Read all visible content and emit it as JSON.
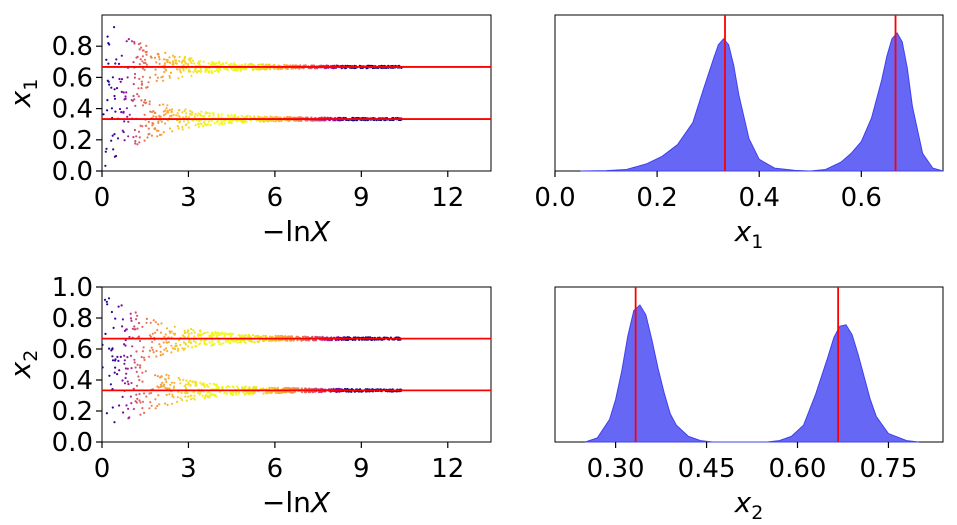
{
  "colors": {
    "truth_line": "#ff0000",
    "kde_fill": "#5a5af5",
    "kde_edge": "#4040ee",
    "colormap": [
      "#0d0887",
      "#6a00a8",
      "#b12a90",
      "#e16462",
      "#fca636",
      "#f0f921"
    ]
  },
  "chart_data": [
    {
      "id": "trace-x1",
      "type": "scatter",
      "xlabel_prefix": "−ln",
      "xlabel_var": "X",
      "ylabel_var": "x",
      "ylabel_sub": "1",
      "xlim": [
        0,
        13.5
      ],
      "ylim": [
        0,
        1.0
      ],
      "xticks": [
        0,
        3,
        6,
        9,
        12
      ],
      "xtick_labels": [
        "0",
        "3",
        "6",
        "9",
        "12"
      ],
      "yticks": [
        0.0,
        0.2,
        0.4,
        0.6,
        0.8
      ],
      "ytick_labels": [
        "0.0",
        "0.2",
        "0.4",
        "0.6",
        "0.8"
      ],
      "truths": [
        0.667,
        0.333
      ],
      "modes": [
        0.667,
        0.333
      ],
      "start_spread": 0.33,
      "decay": 0.6,
      "n_points": 1400
    },
    {
      "id": "posterior-x1",
      "type": "area",
      "xlabel_var": "x",
      "xlabel_sub": "1",
      "xlim": [
        0.0,
        0.76
      ],
      "xticks": [
        0.0,
        0.2,
        0.4,
        0.6
      ],
      "xtick_labels": [
        "0.0",
        "0.2",
        "0.4",
        "0.6"
      ],
      "truths": [
        0.333,
        0.667
      ],
      "x": [
        0.05,
        0.1,
        0.14,
        0.18,
        0.21,
        0.24,
        0.27,
        0.29,
        0.31,
        0.32,
        0.33,
        0.34,
        0.35,
        0.36,
        0.38,
        0.4,
        0.43,
        0.47,
        0.5,
        0.53,
        0.56,
        0.58,
        0.6,
        0.62,
        0.64,
        0.65,
        0.66,
        0.67,
        0.68,
        0.69,
        0.7,
        0.72,
        0.74,
        0.76
      ],
      "y": [
        0.0,
        0.003,
        0.01,
        0.05,
        0.1,
        0.18,
        0.33,
        0.55,
        0.76,
        0.86,
        0.9,
        0.86,
        0.72,
        0.52,
        0.22,
        0.08,
        0.02,
        0.004,
        0.0,
        0.01,
        0.06,
        0.12,
        0.2,
        0.36,
        0.62,
        0.78,
        0.9,
        0.94,
        0.88,
        0.7,
        0.44,
        0.12,
        0.02,
        0.0
      ]
    },
    {
      "id": "trace-x2",
      "type": "scatter",
      "xlabel_prefix": "−ln",
      "xlabel_var": "X",
      "ylabel_var": "x",
      "ylabel_sub": "2",
      "xlim": [
        0,
        13.5
      ],
      "ylim": [
        0,
        1.0
      ],
      "xticks": [
        0,
        3,
        6,
        9,
        12
      ],
      "xtick_labels": [
        "0",
        "3",
        "6",
        "9",
        "12"
      ],
      "yticks": [
        0.0,
        0.2,
        0.4,
        0.6,
        0.8,
        1.0
      ],
      "ytick_labels": [
        "0.0",
        "0.2",
        "0.4",
        "0.6",
        "0.8",
        "1.0"
      ],
      "truths": [
        0.667,
        0.333
      ],
      "modes": [
        0.667,
        0.333
      ],
      "start_spread": 0.33,
      "decay": 0.55,
      "n_points": 1400
    },
    {
      "id": "posterior-x2",
      "type": "area",
      "xlabel_var": "x",
      "xlabel_sub": "2",
      "xlim": [
        0.2,
        0.84
      ],
      "xticks": [
        0.3,
        0.45,
        0.6,
        0.75
      ],
      "xtick_labels": [
        "0.30",
        "0.45",
        "0.60",
        "0.75"
      ],
      "truths": [
        0.333,
        0.667
      ],
      "x": [
        0.25,
        0.27,
        0.29,
        0.3,
        0.31,
        0.32,
        0.33,
        0.34,
        0.35,
        0.36,
        0.37,
        0.38,
        0.39,
        0.4,
        0.42,
        0.44,
        0.46,
        0.55,
        0.57,
        0.59,
        0.61,
        0.63,
        0.65,
        0.66,
        0.67,
        0.68,
        0.69,
        0.7,
        0.71,
        0.72,
        0.73,
        0.75,
        0.78,
        0.8
      ],
      "y": [
        0.0,
        0.03,
        0.16,
        0.3,
        0.5,
        0.75,
        0.93,
        0.97,
        0.9,
        0.72,
        0.52,
        0.35,
        0.2,
        0.12,
        0.04,
        0.01,
        0.0,
        0.0,
        0.01,
        0.04,
        0.12,
        0.34,
        0.6,
        0.74,
        0.82,
        0.83,
        0.76,
        0.62,
        0.46,
        0.3,
        0.18,
        0.06,
        0.01,
        0.0
      ]
    }
  ]
}
